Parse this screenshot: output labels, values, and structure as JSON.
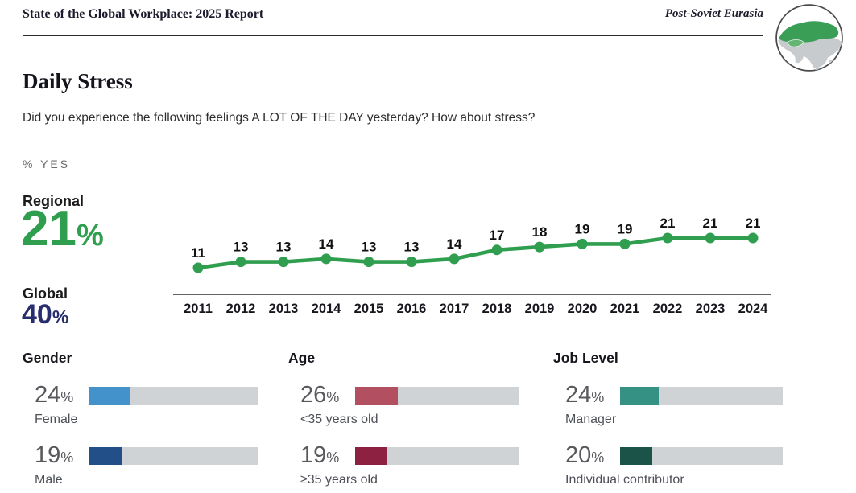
{
  "header": {
    "report_title": "State of the Global Workplace: 2025 Report",
    "region_label": "Post-Soviet Eurasia",
    "globe_icon": "eurasia-globe-icon",
    "globe_highlight_color": "#3b9e57",
    "globe_land_color": "#c8cbcd"
  },
  "page": {
    "title": "Daily Stress",
    "question": "Did you experience the following feelings A LOT OF THE DAY yesterday? How about stress?",
    "unit_label": "% YES"
  },
  "stats": {
    "regional": {
      "label": "Regional",
      "value": "21",
      "unit": "%",
      "color": "#2f9e4e"
    },
    "global": {
      "label": "Global",
      "value": "40",
      "unit": "%",
      "color": "#282e6d"
    }
  },
  "chart_data": {
    "type": "line",
    "title": "Daily Stress — % YES, Post-Soviet Eurasia",
    "x": [
      2011,
      2012,
      2013,
      2014,
      2015,
      2016,
      2017,
      2018,
      2019,
      2020,
      2021,
      2022,
      2023,
      2024
    ],
    "values": [
      11,
      13,
      13,
      14,
      13,
      13,
      14,
      17,
      18,
      19,
      19,
      21,
      21,
      21
    ],
    "series_name": "Regional % yes",
    "line_color": "#2f9e4e",
    "axis_color": "#2e2e2e",
    "xlabel": "",
    "ylabel": "% YES",
    "ylim": [
      0,
      25
    ],
    "grid": false,
    "legend": "none",
    "data_labels": true
  },
  "demographics": {
    "gender": {
      "heading": "Gender",
      "rows": [
        {
          "pct": "24",
          "unit": "%",
          "value": 24,
          "label": "Female",
          "color": "#4492cc"
        },
        {
          "pct": "19",
          "unit": "%",
          "value": 19,
          "label": "Male",
          "color": "#234f88"
        }
      ]
    },
    "age": {
      "heading": "Age",
      "rows": [
        {
          "pct": "26",
          "unit": "%",
          "value": 26,
          "label": "<35 years old",
          "color": "#b25061"
        },
        {
          "pct": "19",
          "unit": "%",
          "value": 19,
          "label": "≥35 years old",
          "color": "#8c2142"
        }
      ]
    },
    "job_level": {
      "heading": "Job Level",
      "rows": [
        {
          "pct": "24",
          "unit": "%",
          "value": 24,
          "label": "Manager",
          "color": "#349183"
        },
        {
          "pct": "20",
          "unit": "%",
          "value": 20,
          "label": "Individual contributor",
          "color": "#1c5348"
        }
      ]
    }
  },
  "colors": {
    "track_gray": "#d0d3d5",
    "value_text_gray": "#58595d",
    "label_text_gray": "#4d5056"
  }
}
